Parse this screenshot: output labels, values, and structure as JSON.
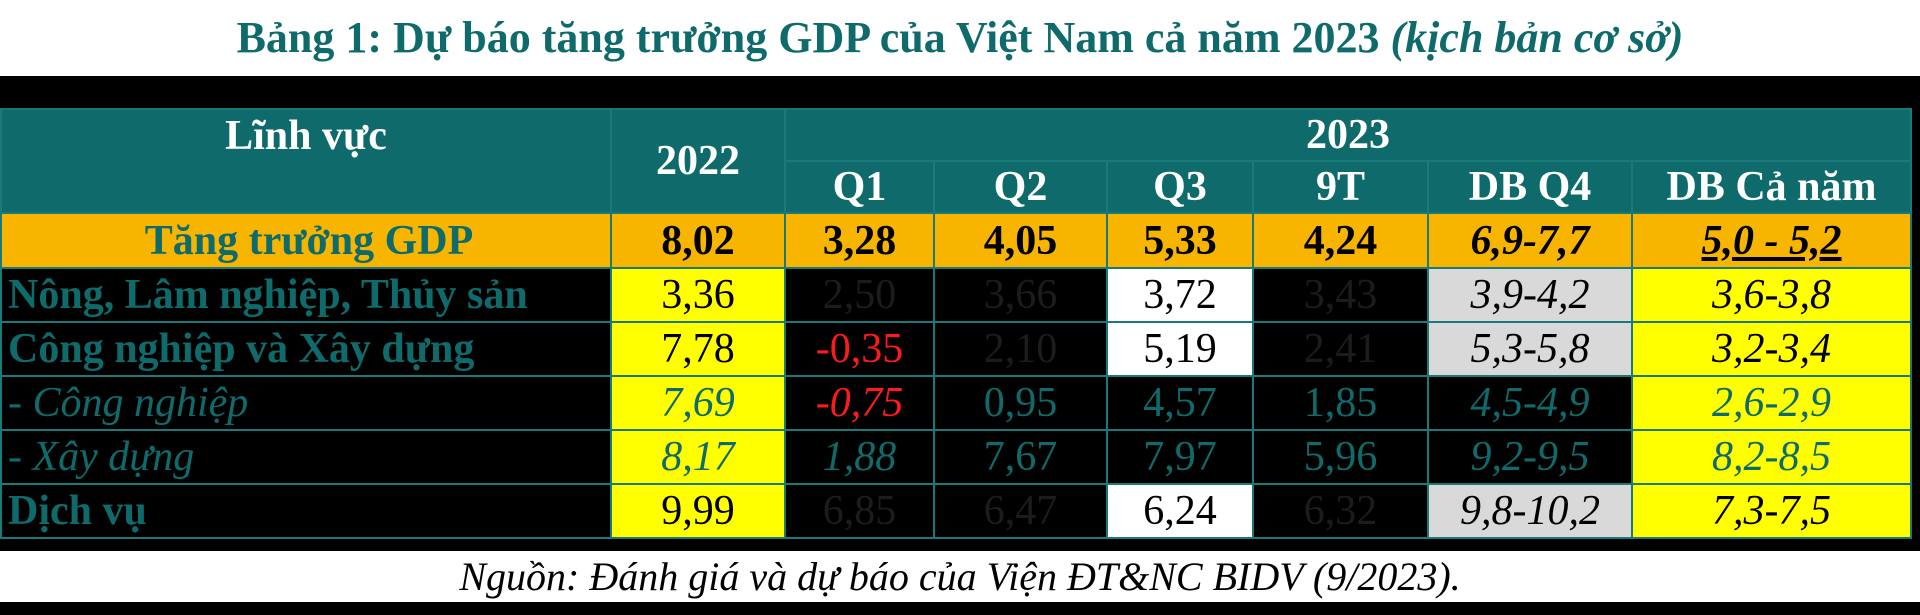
{
  "title": {
    "main": "Bảng 1: Dự báo tăng trưởng GDP của Việt Nam cả năm 2023",
    "note": "(kịch bản cơ sở)"
  },
  "table": {
    "header": {
      "sector": "Lĩnh vực",
      "year_prev": "2022",
      "year": "2023",
      "columns": [
        "Q1",
        "Q2",
        "Q3",
        "9T",
        "DB Q4",
        "DB Cả năm"
      ]
    },
    "rows": [
      {
        "label": "Tăng trưởng GDP",
        "cells": [
          "8,02",
          "3,28",
          "4,05",
          "5,33",
          "4,24",
          "6,9-7,7",
          "5,0 - 5,2"
        ]
      },
      {
        "label": "Nông, Lâm nghiệp, Thủy sản",
        "cells": [
          "3,36",
          "2,50",
          "3,66",
          "3,72",
          "3,43",
          "3,9-4,2",
          "3,6-3,8"
        ]
      },
      {
        "label": "Công nghiệp và Xây dựng",
        "cells": [
          "7,78",
          "-0,35",
          "2,10",
          "5,19",
          "2,41",
          "5,3-5,8",
          "3,2-3,4"
        ]
      },
      {
        "label": "- Công nghiệp",
        "cells": [
          "7,69",
          "-0,75",
          "0,95",
          "4,57",
          "1,85",
          "4,5-4,9",
          "2,6-2,9"
        ]
      },
      {
        "label": "- Xây dựng",
        "cells": [
          "8,17",
          "1,88",
          "7,67",
          "7,97",
          "5,96",
          "9,2-9,5",
          "8,2-8,5"
        ]
      },
      {
        "label": "Dịch vụ",
        "cells": [
          "9,99",
          "6,85",
          "6,47",
          "6,24",
          "6,32",
          "9,8-10,2",
          "7,3-7,5"
        ]
      }
    ]
  },
  "source": "Nguồn: Đánh giá và dự báo của Viện ĐT&NC BIDV (9/2023)."
}
